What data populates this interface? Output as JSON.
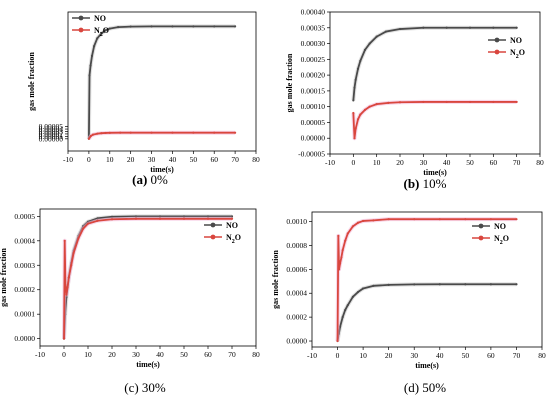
{
  "chart_data": [
    {
      "type": "line",
      "caption_bold": "(a)",
      "caption_rest": " 0%",
      "xlabel": "time(s)",
      "ylabel": "gas mole fraction",
      "xlim": [
        -10,
        80
      ],
      "ylim": [
        -5e-05,
        0.00052
      ],
      "xticks": [
        "-10",
        "0",
        "10",
        "20",
        "30",
        "40",
        "50",
        "60",
        "70",
        "80"
      ],
      "yticks": [
        "0.00000",
        "0.00001",
        "0.00002",
        "0.00003",
        "0.00004",
        "0.00005"
      ],
      "legend_position": "top-left",
      "series": [
        {
          "name": "NO",
          "color": "#4a4a4a",
          "x": [
            0,
            0.3,
            0.8,
            1.5,
            2.5,
            4,
            6,
            8,
            10,
            14,
            20,
            30,
            40,
            50,
            60,
            70
          ],
          "y": [
            0,
            0.00026,
            0.0003,
            0.00034,
            0.00038,
            0.000412,
            0.000432,
            0.000445,
            0.000452,
            0.000458,
            0.00046,
            0.000461,
            0.000461,
            0.000461,
            0.000461,
            0.000461
          ]
        },
        {
          "name": "N2O",
          "color": "#d9463e",
          "x": [
            0,
            1,
            2,
            4,
            6,
            8,
            10,
            15,
            20,
            30,
            40,
            50,
            60,
            70
          ],
          "y": [
            0,
            1.2e-05,
            1.7e-05,
            2.1e-05,
            2.3e-05,
            2.4e-05,
            2.45e-05,
            2.5e-05,
            2.5e-05,
            2.5e-05,
            2.5e-05,
            2.5e-05,
            2.5e-05,
            2.5e-05
          ]
        }
      ]
    },
    {
      "type": "line",
      "caption_bold": "(b)",
      "caption_rest": " 10%",
      "xlabel": "time(s)",
      "ylabel": "gas mole fraction",
      "xlim": [
        -10,
        80
      ],
      "ylim": [
        -5e-05,
        0.0004
      ],
      "xticks": [
        "-10",
        "0",
        "10",
        "20",
        "30",
        "40",
        "50",
        "60",
        "70",
        "80"
      ],
      "yticks": [
        "-0.00005",
        "0.00000",
        "0.00005",
        "0.00010",
        "0.00015",
        "0.00020",
        "0.00025",
        "0.00030",
        "0.00035",
        "0.00040"
      ],
      "legend_position": "right",
      "series": [
        {
          "name": "NO",
          "color": "#4a4a4a",
          "x": [
            0,
            0.5,
            1,
            2,
            3,
            5,
            7,
            10,
            14,
            20,
            30,
            40,
            50,
            60,
            70
          ],
          "y": [
            0.00012,
            0.00016,
            0.000185,
            0.00022,
            0.000245,
            0.00028,
            0.0003,
            0.000322,
            0.000338,
            0.000346,
            0.00035,
            0.00035,
            0.00035,
            0.00035,
            0.00035
          ]
        },
        {
          "name": "N2O",
          "color": "#d9463e",
          "x": [
            0,
            0.5,
            1,
            2,
            3,
            5,
            7,
            10,
            15,
            20,
            30,
            40,
            50,
            60,
            70
          ],
          "y": [
            8e-05,
            0.0,
            3e-05,
            6e-05,
            7.5e-05,
            9e-05,
            0.0001,
            0.000108,
            0.000112,
            0.000114,
            0.000115,
            0.000115,
            0.000115,
            0.000115,
            0.000115
          ]
        }
      ]
    },
    {
      "type": "line",
      "caption_bold": "",
      "caption_rest": "(c) 30%",
      "xlabel": "time(s)",
      "ylabel": "gas mole fraction",
      "xlim": [
        -10,
        80
      ],
      "ylim": [
        -3e-05,
        0.00053
      ],
      "xticks": [
        "-10",
        "0",
        "10",
        "20",
        "30",
        "40",
        "50",
        "60",
        "70",
        "80"
      ],
      "yticks": [
        "0.0000",
        "0.0001",
        "0.0002",
        "0.0003",
        "0.0004",
        "0.0005"
      ],
      "legend_position": "right",
      "series": [
        {
          "name": "NO",
          "color": "#4a4a4a",
          "x": [
            0,
            0.5,
            1,
            2,
            3,
            4,
            6,
            8,
            10,
            14,
            20,
            30,
            40,
            50,
            60,
            70
          ],
          "y": [
            0,
            0.0001,
            0.00017,
            0.00025,
            0.00031,
            0.00036,
            0.00042,
            0.00046,
            0.000478,
            0.000492,
            0.000498,
            0.0005,
            0.0005,
            0.0005,
            0.0005,
            0.0005
          ]
        },
        {
          "name": "N2O",
          "color": "#d9463e",
          "x": [
            0,
            0.3,
            0.6,
            1,
            1.5,
            2,
            3,
            4,
            6,
            8,
            10,
            14,
            20,
            30,
            40,
            50,
            60,
            70
          ],
          "y": [
            0,
            0.0004,
            0.00022,
            0.00018,
            0.00021,
            0.00025,
            0.0003,
            0.00035,
            0.00041,
            0.00045,
            0.00047,
            0.000482,
            0.000488,
            0.00049,
            0.00049,
            0.00049,
            0.00049,
            0.00049
          ]
        }
      ]
    },
    {
      "type": "line",
      "caption_bold": "",
      "caption_rest": "(d) 50%",
      "xlabel": "time(s)",
      "ylabel": "gas mole fraction",
      "xlim": [
        -10,
        80
      ],
      "ylim": [
        -5e-05,
        0.00108
      ],
      "xticks": [
        "-10",
        "0",
        "10",
        "20",
        "30",
        "40",
        "50",
        "60",
        "70",
        "80"
      ],
      "yticks": [
        "0.0000",
        "0.0002",
        "0.0004",
        "0.0006",
        "0.0008",
        "0.0010"
      ],
      "legend_position": "top-right",
      "series": [
        {
          "name": "NO",
          "color": "#4a4a4a",
          "x": [
            0,
            0.5,
            1,
            2,
            3,
            4,
            6,
            8,
            10,
            14,
            20,
            30,
            40,
            50,
            60,
            70
          ],
          "y": [
            0,
            6e-05,
            0.00012,
            0.0002,
            0.00026,
            0.0003,
            0.00037,
            0.00041,
            0.00044,
            0.000462,
            0.00047,
            0.000474,
            0.000475,
            0.000475,
            0.000475,
            0.000475
          ]
        },
        {
          "name": "N2O",
          "color": "#d9463e",
          "x": [
            0,
            0.3,
            0.6,
            1,
            1.5,
            2,
            3,
            4,
            6,
            8,
            10,
            14,
            20,
            30,
            40,
            50,
            60,
            70
          ],
          "y": [
            0,
            0.00088,
            0.0006,
            0.00065,
            0.0007,
            0.00076,
            0.00084,
            0.0009,
            0.00096,
            0.00099,
            0.001005,
            0.00101,
            0.00102,
            0.00102,
            0.00102,
            0.00102,
            0.00102,
            0.00102
          ]
        }
      ]
    }
  ]
}
